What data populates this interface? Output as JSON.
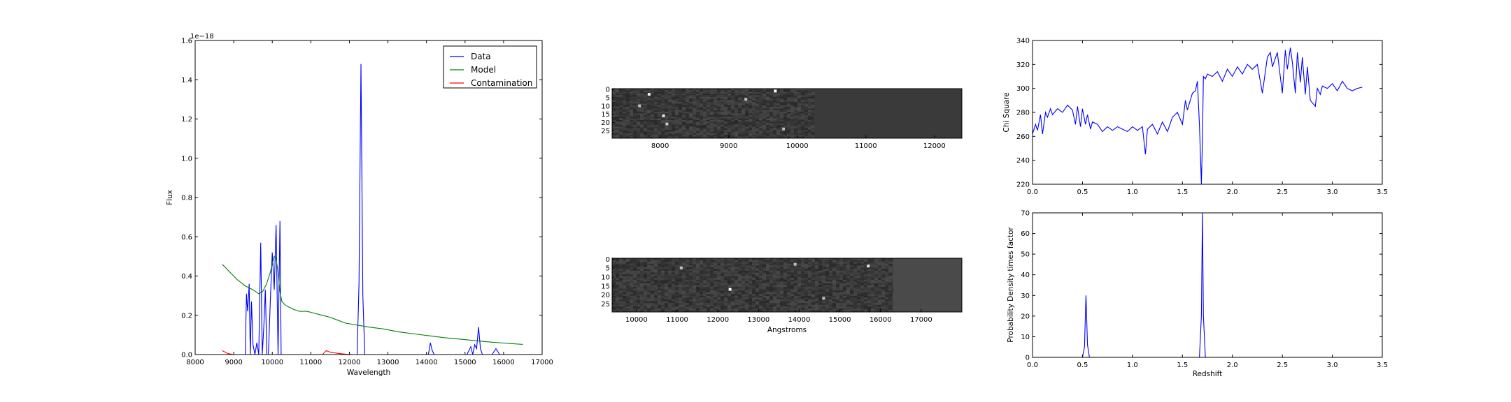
{
  "chart_data": [
    {
      "type": "line",
      "title": "",
      "xlabel": "Wavelength",
      "ylabel": "Flux",
      "offset_text": "1e−18",
      "xlim": [
        8000,
        17000
      ],
      "ylim": [
        0.0,
        1.6
      ],
      "xticks": [
        8000,
        9000,
        10000,
        11000,
        12000,
        13000,
        14000,
        15000,
        16000,
        17000
      ],
      "yticks": [
        0.0,
        0.2,
        0.4,
        0.6,
        0.8,
        1.0,
        1.2,
        1.4,
        1.6
      ],
      "yticklabels": [
        "0.0",
        "0.2",
        "0.4",
        "0.6",
        "0.8",
        "1.0",
        "1.2",
        "1.4",
        "1.6"
      ],
      "grid": false,
      "legend_position": "top-right",
      "series": [
        {
          "name": "Data",
          "color": "#0000ff",
          "x": [
            9300,
            9330,
            9360,
            9400,
            9430,
            9460,
            9500,
            9550,
            9600,
            9650,
            9700,
            9740,
            9780,
            9820,
            9860,
            9900,
            9950,
            10000,
            10050,
            10100,
            10150,
            10200,
            10230,
            10260,
            10300,
            12100,
            12200,
            12250,
            12300,
            12350,
            12400,
            12450,
            14050,
            14100,
            14150,
            14200,
            15050,
            15150,
            15200,
            15250,
            15300,
            15350,
            15400,
            15450,
            15500,
            15700,
            15800,
            15900
          ],
          "y": [
            0.0,
            0.31,
            0.22,
            0.36,
            0.0,
            0.27,
            0.05,
            0.0,
            0.06,
            0.0,
            0.57,
            0.0,
            0.14,
            0.33,
            0.0,
            0.0,
            0.28,
            0.52,
            0.33,
            0.66,
            0.0,
            0.68,
            0.0,
            0.0,
            0.0,
            0.0,
            0.0,
            0.36,
            1.48,
            0.3,
            0.0,
            0.0,
            0.0,
            0.06,
            0.02,
            0.0,
            0.0,
            0.04,
            0.0,
            0.05,
            0.03,
            0.14,
            0.03,
            0.0,
            0.0,
            0.0,
            0.03,
            0.0
          ]
        },
        {
          "name": "Model",
          "color": "#008000",
          "x": [
            8700,
            8900,
            9100,
            9300,
            9500,
            9650,
            9750,
            9850,
            9950,
            10050,
            10100,
            10150,
            10200,
            10250,
            10350,
            10450,
            10550,
            10700,
            10900,
            11100,
            11300,
            11500,
            11700,
            11900,
            12200,
            12500,
            12900,
            13300,
            13700,
            14100,
            14500,
            14900,
            15300,
            15700,
            16100,
            16500
          ],
          "y": [
            0.46,
            0.42,
            0.38,
            0.35,
            0.33,
            0.31,
            0.32,
            0.36,
            0.42,
            0.5,
            0.49,
            0.42,
            0.32,
            0.27,
            0.25,
            0.24,
            0.23,
            0.22,
            0.22,
            0.21,
            0.2,
            0.19,
            0.175,
            0.16,
            0.15,
            0.14,
            0.13,
            0.115,
            0.105,
            0.095,
            0.085,
            0.078,
            0.07,
            0.063,
            0.057,
            0.052
          ]
        },
        {
          "name": "Contamination",
          "color": "#ff0000",
          "x": [
            8700,
            8850,
            9000,
            9200,
            11300,
            11400,
            11500,
            11700,
            11900,
            12100,
            16500
          ],
          "y": [
            0.02,
            0.005,
            0.0,
            0.0,
            0.0,
            0.02,
            0.012,
            0.006,
            0.002,
            0.0,
            0.0
          ]
        }
      ]
    },
    {
      "type": "heatmap",
      "title": "",
      "xlabel": "",
      "ylabel": "",
      "xlim": [
        7300,
        12400
      ],
      "xticks": [
        8000,
        9000,
        10000,
        11000,
        12000
      ],
      "yticks": [
        0,
        5,
        10,
        15,
        20,
        25
      ],
      "rows": 30,
      "data_extent": [
        7300,
        10250
      ],
      "background_color": "#3a3a3a",
      "data_color": "#404040",
      "bright_pixels": [
        {
          "x": 7840,
          "y": 3,
          "level": 0.9
        },
        {
          "x": 9680,
          "y": 1,
          "level": 1.0
        },
        {
          "x": 8050,
          "y": 16,
          "level": 0.8
        },
        {
          "x": 8100,
          "y": 21,
          "level": 0.6
        },
        {
          "x": 7700,
          "y": 10,
          "level": 0.55
        },
        {
          "x": 9250,
          "y": 6,
          "level": 0.55
        },
        {
          "x": 9800,
          "y": 24,
          "level": 0.5
        }
      ]
    },
    {
      "type": "heatmap",
      "title": "",
      "xlabel": "Angstroms",
      "ylabel": "",
      "xlim": [
        9400,
        18000
      ],
      "xticks": [
        10000,
        11000,
        12000,
        13000,
        14000,
        15000,
        16000,
        17000
      ],
      "yticks": [
        0,
        5,
        10,
        15,
        20,
        25
      ],
      "rows": 30,
      "data_extent": [
        9400,
        16300
      ],
      "background_color": "#4a4a4a",
      "data_color": "#4a4a4a",
      "bright_pixels": [
        {
          "x": 12300,
          "y": 17,
          "level": 1.0
        },
        {
          "x": 15700,
          "y": 4,
          "level": 0.8
        },
        {
          "x": 11100,
          "y": 5,
          "level": 0.55
        },
        {
          "x": 13900,
          "y": 3,
          "level": 0.5
        },
        {
          "x": 14600,
          "y": 22,
          "level": 0.5
        }
      ]
    },
    {
      "type": "line",
      "title": "",
      "xlabel": "",
      "ylabel": "Chi Square",
      "xlim": [
        0.0,
        3.5
      ],
      "ylim": [
        220,
        340
      ],
      "xticks": [
        0.0,
        0.5,
        1.0,
        1.5,
        2.0,
        2.5,
        3.0,
        3.5
      ],
      "xticklabels": [
        "0.0",
        "0.5",
        "1.0",
        "1.5",
        "2.0",
        "2.5",
        "3.0",
        "3.5"
      ],
      "yticks": [
        220,
        240,
        260,
        280,
        300,
        320,
        340
      ],
      "grid": false,
      "series": [
        {
          "name": "",
          "color": "#0000ff",
          "x": [
            0.0,
            0.03,
            0.05,
            0.08,
            0.1,
            0.13,
            0.15,
            0.18,
            0.2,
            0.25,
            0.3,
            0.35,
            0.4,
            0.43,
            0.45,
            0.48,
            0.5,
            0.53,
            0.55,
            0.58,
            0.6,
            0.65,
            0.7,
            0.75,
            0.8,
            0.85,
            0.9,
            0.95,
            1.0,
            1.05,
            1.1,
            1.13,
            1.15,
            1.2,
            1.25,
            1.3,
            1.35,
            1.4,
            1.45,
            1.5,
            1.53,
            1.55,
            1.6,
            1.63,
            1.65,
            1.67,
            1.69,
            1.7,
            1.71,
            1.73,
            1.75,
            1.8,
            1.85,
            1.9,
            1.95,
            2.0,
            2.05,
            2.1,
            2.15,
            2.2,
            2.25,
            2.3,
            2.35,
            2.38,
            2.4,
            2.45,
            2.5,
            2.53,
            2.55,
            2.58,
            2.6,
            2.63,
            2.65,
            2.68,
            2.7,
            2.73,
            2.75,
            2.78,
            2.8,
            2.83,
            2.85,
            2.88,
            2.9,
            2.95,
            3.0,
            3.05,
            3.1,
            3.15,
            3.2,
            3.25,
            3.3
          ],
          "y": [
            262,
            270,
            265,
            278,
            262,
            280,
            276,
            283,
            278,
            283,
            280,
            286,
            282,
            270,
            285,
            268,
            283,
            270,
            278,
            266,
            272,
            270,
            264,
            268,
            265,
            268,
            266,
            264,
            268,
            265,
            268,
            245,
            266,
            270,
            262,
            272,
            264,
            276,
            280,
            270,
            290,
            282,
            296,
            298,
            306,
            270,
            220,
            258,
            310,
            308,
            312,
            310,
            314,
            306,
            316,
            310,
            318,
            312,
            320,
            316,
            320,
            296,
            326,
            330,
            318,
            330,
            296,
            332,
            316,
            334,
            322,
            296,
            330,
            305,
            326,
            295,
            318,
            290,
            288,
            285,
            300,
            295,
            302,
            300,
            304,
            298,
            306,
            300,
            298,
            300,
            301
          ]
        }
      ]
    },
    {
      "type": "line",
      "title": "",
      "xlabel": "Redshift",
      "ylabel": "Probability Density times factor",
      "xlim": [
        0.0,
        3.5
      ],
      "ylim": [
        0,
        70
      ],
      "xticks": [
        0.0,
        0.5,
        1.0,
        1.5,
        2.0,
        2.5,
        3.0,
        3.5
      ],
      "xticklabels": [
        "0.0",
        "0.5",
        "1.0",
        "1.5",
        "2.0",
        "2.5",
        "3.0",
        "3.5"
      ],
      "yticks": [
        0,
        10,
        20,
        30,
        40,
        50,
        60,
        70
      ],
      "grid": false,
      "series": [
        {
          "name": "",
          "color": "#0000ff",
          "x": [
            0.0,
            0.5,
            0.52,
            0.535,
            0.55,
            0.57,
            1.0,
            1.67,
            1.69,
            1.7,
            1.71,
            1.73,
            2.5,
            3.3
          ],
          "y": [
            0,
            0,
            5,
            30,
            6,
            0,
            0,
            0,
            20,
            70,
            20,
            0,
            0,
            0
          ]
        }
      ]
    }
  ]
}
